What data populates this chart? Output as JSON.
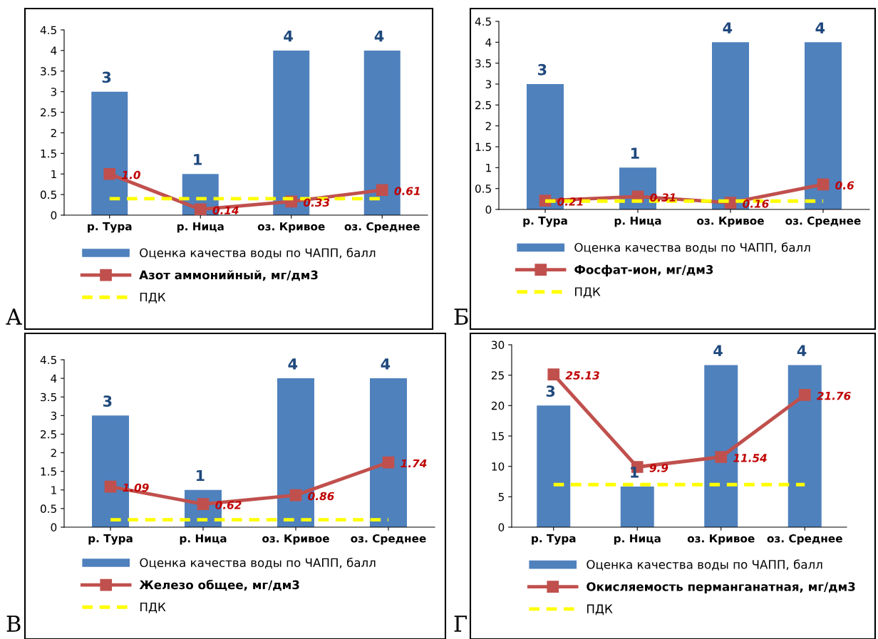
{
  "chart_data": [
    {
      "type": "bar",
      "categories": [
        "р. Тура",
        "р. Ница",
        "оз. Кривое",
        "оз. Среднее"
      ],
      "ylim": [
        0,
        4.5
      ],
      "yticks": [
        0,
        0.5,
        1,
        1.5,
        2,
        2.5,
        3,
        3.5,
        4,
        4.5
      ],
      "legend": "bottom",
      "grid": false,
      "annotations": [
        "А"
      ],
      "series": [
        {
          "name": "Оценка качества воды по ЧАПП, балл",
          "color": "#4f81bd",
          "values": [
            3,
            1,
            4,
            4
          ],
          "value_labels": [
            "3",
            "1",
            "4",
            "4"
          ]
        },
        {
          "type": "line",
          "name": "Азот аммонийный, мг/дм3",
          "color": "#c0504d",
          "marker": "square",
          "line_style": "solid",
          "values": [
            1.0,
            0.14,
            0.33,
            0.61
          ],
          "value_labels": [
            "1.0",
            "0.14",
            "0.33",
            "0.61"
          ]
        },
        {
          "type": "line",
          "name": "ПДК",
          "color": "#ffff00",
          "marker": "none",
          "line_style": "dashed",
          "values": [
            0.4,
            0.4,
            0.4,
            0.4
          ]
        }
      ]
    },
    {
      "type": "bar",
      "categories": [
        "р. Тура",
        "р. Ница",
        "оз. Кривое",
        "оз. Среднее"
      ],
      "ylim": [
        0,
        4.5
      ],
      "yticks": [
        0,
        0.5,
        1,
        1.5,
        2,
        2.5,
        3,
        3.5,
        4,
        4.5
      ],
      "legend": "bottom",
      "grid": false,
      "annotations": [
        "Б"
      ],
      "series": [
        {
          "name": "Оценка качества воды по ЧАПП, балл",
          "color": "#4f81bd",
          "values": [
            3,
            1,
            4,
            4
          ],
          "value_labels": [
            "3",
            "1",
            "4",
            "4"
          ]
        },
        {
          "type": "line",
          "name": "Фосфат-ион, мг/дм3",
          "color": "#c0504d",
          "marker": "square",
          "line_style": "solid",
          "values": [
            0.21,
            0.31,
            0.16,
            0.6
          ],
          "value_labels": [
            "0.21",
            "0.31",
            "0.16",
            "0.6"
          ]
        },
        {
          "type": "line",
          "name": "ПДК",
          "color": "#ffff00",
          "marker": "none",
          "line_style": "dashed",
          "values": [
            0.2,
            0.2,
            0.2,
            0.2
          ]
        }
      ]
    },
    {
      "type": "bar",
      "categories": [
        "р. Тура",
        "р. Ница",
        "оз. Кривое",
        "оз. Среднее"
      ],
      "ylim": [
        0,
        4.5
      ],
      "yticks": [
        0,
        0.5,
        1,
        1.5,
        2,
        2.5,
        3,
        3.5,
        4,
        4.5
      ],
      "legend": "bottom",
      "grid": false,
      "annotations": [
        "В"
      ],
      "series": [
        {
          "name": "Оценка качества воды по ЧАПП, балл",
          "color": "#4f81bd",
          "values": [
            3,
            1,
            4,
            4
          ],
          "value_labels": [
            "3",
            "1",
            "4",
            "4"
          ]
        },
        {
          "type": "line",
          "name": "Железо общее, мг/дм3",
          "color": "#c0504d",
          "marker": "square",
          "line_style": "solid",
          "values": [
            1.09,
            0.62,
            0.86,
            1.74
          ],
          "value_labels": [
            "1.09",
            "0.62",
            "0.86",
            "1.74"
          ]
        },
        {
          "type": "line",
          "name": "ПДК",
          "color": "#ffff00",
          "marker": "none",
          "line_style": "dashed",
          "values": [
            0.2,
            0.2,
            0.2,
            0.2
          ]
        }
      ]
    },
    {
      "type": "bar",
      "categories": [
        "р. Тура",
        "р. Ница",
        "оз. Кривое",
        "оз. Среднее"
      ],
      "ylim": [
        0,
        30
      ],
      "yticks": [
        0,
        5,
        10,
        15,
        20,
        25,
        30
      ],
      "y2lim": [
        0,
        4.5
      ],
      "legend": "bottom",
      "grid": false,
      "annotations": [
        "Г"
      ],
      "series": [
        {
          "axis": "y2",
          "name": "Оценка качества воды по ЧАПП, балл",
          "color": "#4f81bd",
          "values": [
            3,
            1,
            4,
            4
          ],
          "value_labels": [
            "3",
            "1",
            "4",
            "4"
          ]
        },
        {
          "type": "line",
          "name": "Окисляемость перманганатная, мг/дм3",
          "color": "#c0504d",
          "marker": "square",
          "line_style": "solid",
          "values": [
            25.13,
            9.9,
            11.54,
            21.76
          ],
          "value_labels": [
            "25.13",
            "9.9",
            "11.54",
            "21.76"
          ]
        },
        {
          "type": "line",
          "name": "ПДК",
          "color": "#ffff00",
          "marker": "none",
          "line_style": "dashed",
          "values": [
            7,
            7,
            7,
            7
          ]
        }
      ]
    }
  ]
}
